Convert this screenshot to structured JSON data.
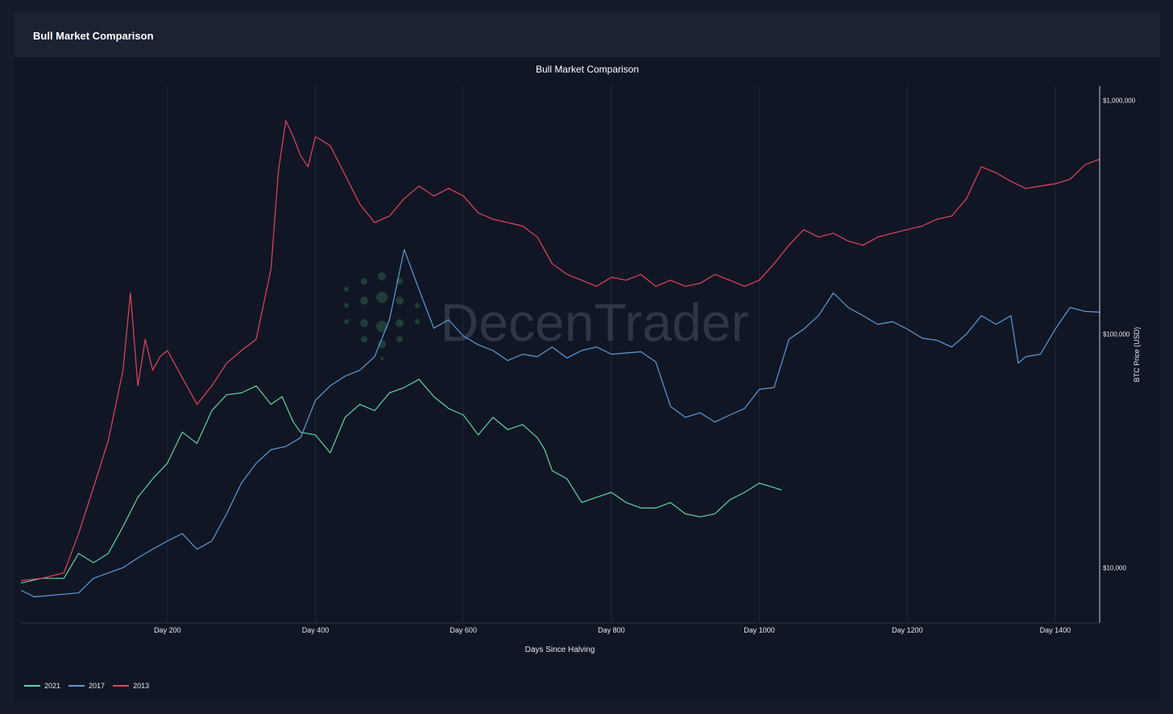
{
  "panel": {
    "title": "Bull Market Comparison"
  },
  "watermark": "DecenTrader",
  "colors": {
    "2021": "#5fd3a0",
    "2017": "#5b9bd8",
    "2013": "#e04560"
  },
  "chart_data": {
    "type": "line",
    "title": "Bull Market Comparison",
    "xlabel": "Days Since Halving",
    "ylabel": "BTC Price (USD)",
    "yscale": "log",
    "xlim": [
      2,
      1460
    ],
    "ylim": [
      5800,
      1150000
    ],
    "x_ticks": [
      {
        "value": 200,
        "label": "Day 200"
      },
      {
        "value": 400,
        "label": "Day 400"
      },
      {
        "value": 600,
        "label": "Day 600"
      },
      {
        "value": 800,
        "label": "Day 800"
      },
      {
        "value": 1000,
        "label": "Day 1000"
      },
      {
        "value": 1200,
        "label": "Day 1200"
      },
      {
        "value": 1400,
        "label": "Day 1400"
      }
    ],
    "y_ticks": [
      {
        "value": 10000,
        "label": "$10,000"
      },
      {
        "value": 100000,
        "label": "$100,000"
      },
      {
        "value": 1000000,
        "label": "$1,000,000"
      }
    ],
    "legend_position": "bottom-left",
    "grid": true,
    "series": [
      {
        "name": "2021",
        "color": "#5fd3a0",
        "x": [
          2,
          30,
          60,
          80,
          100,
          120,
          140,
          160,
          180,
          200,
          220,
          240,
          260,
          280,
          300,
          320,
          340,
          355,
          370,
          380,
          400,
          420,
          440,
          460,
          480,
          500,
          520,
          540,
          560,
          580,
          600,
          620,
          640,
          660,
          680,
          700,
          710,
          720,
          740,
          760,
          780,
          800,
          820,
          840,
          860,
          880,
          900,
          920,
          940,
          960,
          980,
          1000,
          1020,
          1030
        ],
        "y": [
          8600,
          9000,
          9000,
          11500,
          10500,
          11500,
          15000,
          20000,
          24000,
          28000,
          38000,
          34000,
          47000,
          55000,
          56000,
          60000,
          50000,
          54000,
          42000,
          38000,
          37000,
          31000,
          44000,
          50000,
          47000,
          56000,
          59000,
          64000,
          54000,
          48000,
          45000,
          37000,
          44000,
          39000,
          41000,
          36000,
          32000,
          26000,
          24000,
          19000,
          20000,
          21000,
          19000,
          18000,
          18000,
          19000,
          17000,
          16500,
          17000,
          19500,
          21000,
          23000,
          22000,
          21500
        ]
      },
      {
        "name": "2017",
        "color": "#5b9bd8",
        "x": [
          2,
          20,
          40,
          60,
          80,
          100,
          120,
          140,
          160,
          180,
          200,
          220,
          240,
          260,
          280,
          300,
          320,
          340,
          360,
          380,
          400,
          420,
          440,
          460,
          480,
          500,
          520,
          540,
          560,
          580,
          600,
          620,
          640,
          660,
          680,
          700,
          720,
          740,
          760,
          780,
          800,
          820,
          840,
          860,
          880,
          900,
          920,
          940,
          960,
          980,
          1000,
          1020,
          1040,
          1060,
          1080,
          1100,
          1120,
          1140,
          1160,
          1180,
          1200,
          1220,
          1240,
          1260,
          1280,
          1300,
          1320,
          1340,
          1350,
          1360,
          1380,
          1400,
          1420,
          1440,
          1460
        ],
        "y": [
          8000,
          7500,
          7600,
          7700,
          7800,
          9000,
          9500,
          10000,
          11000,
          12000,
          13000,
          14000,
          12000,
          13000,
          17000,
          23000,
          28000,
          32000,
          33000,
          36000,
          52000,
          60000,
          66000,
          70000,
          80000,
          115000,
          230000,
          155000,
          106000,
          115000,
          98000,
          90000,
          85000,
          77000,
          82000,
          80000,
          88000,
          79000,
          85000,
          88000,
          82000,
          83000,
          84000,
          76000,
          49000,
          44000,
          46000,
          42000,
          45000,
          48000,
          58000,
          59000,
          95000,
          105000,
          120000,
          150000,
          130000,
          120000,
          110000,
          113000,
          105000,
          96000,
          94000,
          88000,
          100000,
          120000,
          110000,
          120000,
          75000,
          80000,
          82000,
          105000,
          130000,
          125000,
          124000
        ]
      },
      {
        "name": "2013",
        "color": "#e04560",
        "x": [
          2,
          30,
          60,
          80,
          100,
          120,
          140,
          150,
          160,
          170,
          180,
          190,
          200,
          220,
          240,
          260,
          280,
          300,
          320,
          340,
          350,
          360,
          370,
          380,
          390,
          400,
          420,
          440,
          460,
          480,
          500,
          520,
          540,
          560,
          580,
          600,
          620,
          640,
          660,
          680,
          700,
          720,
          740,
          760,
          780,
          800,
          820,
          840,
          860,
          880,
          900,
          920,
          940,
          960,
          980,
          1000,
          1020,
          1040,
          1060,
          1080,
          1100,
          1120,
          1140,
          1160,
          1180,
          1200,
          1220,
          1240,
          1260,
          1280,
          1300,
          1320,
          1340,
          1360,
          1380,
          1400,
          1420,
          1440,
          1460
        ],
        "y": [
          8800,
          9000,
          9500,
          14000,
          22000,
          35000,
          70000,
          150000,
          60000,
          95000,
          70000,
          80000,
          85000,
          65000,
          50000,
          60000,
          75000,
          85000,
          95000,
          190000,
          500000,
          820000,
          700000,
          580000,
          520000,
          700000,
          640000,
          480000,
          360000,
          300000,
          320000,
          380000,
          430000,
          390000,
          420000,
          390000,
          330000,
          310000,
          300000,
          290000,
          260000,
          200000,
          180000,
          170000,
          160000,
          175000,
          170000,
          180000,
          160000,
          170000,
          160000,
          165000,
          180000,
          170000,
          160000,
          170000,
          200000,
          240000,
          280000,
          260000,
          270000,
          250000,
          240000,
          260000,
          270000,
          280000,
          290000,
          310000,
          320000,
          380000,
          520000,
          490000,
          450000,
          420000,
          430000,
          440000,
          460000,
          530000,
          560000
        ]
      }
    ]
  }
}
